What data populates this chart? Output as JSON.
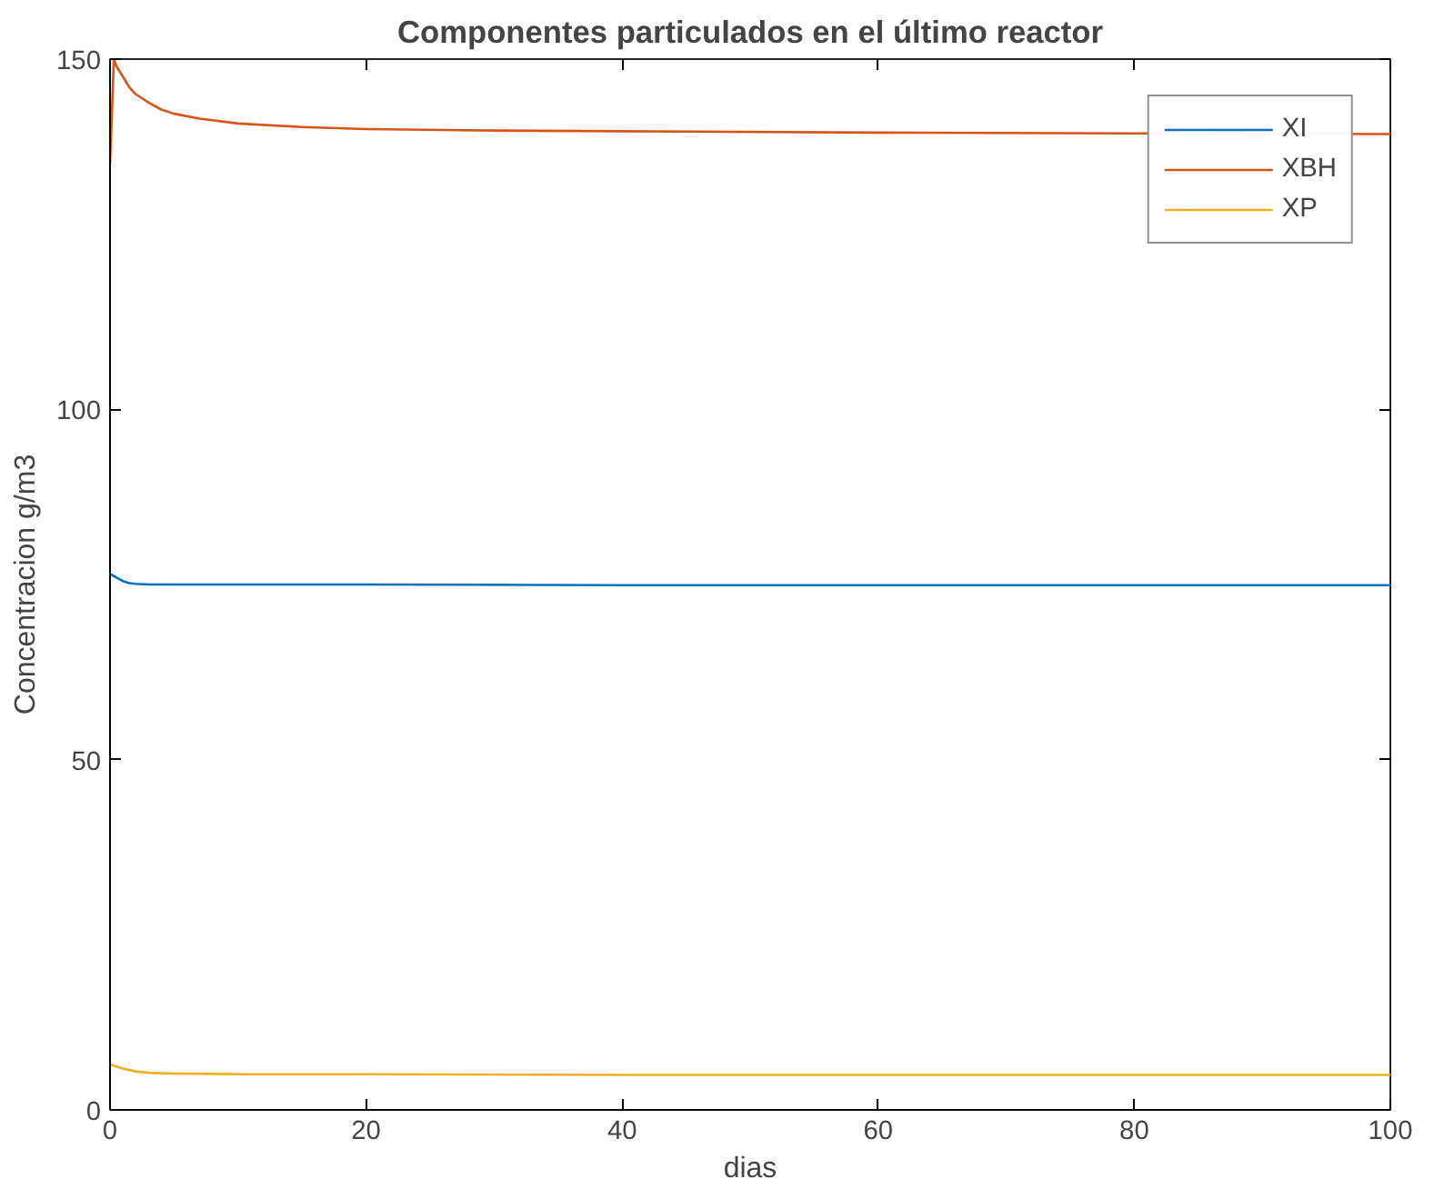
{
  "chart_data": {
    "type": "line",
    "title": "Componentes particulados en el último reactor",
    "xlabel": "dias",
    "ylabel": "Concentracion g/m3",
    "xlim": [
      0,
      100
    ],
    "ylim": [
      0,
      150
    ],
    "xticks": [
      0,
      20,
      40,
      60,
      80,
      100
    ],
    "yticks": [
      0,
      50,
      100,
      150
    ],
    "grid": false,
    "legend": "top right",
    "marker": "none",
    "line_style": "solid",
    "series": [
      {
        "name": "XI",
        "color": "#0072bd",
        "x": [
          0,
          0.3,
          0.7,
          1,
          1.5,
          2,
          3,
          5,
          10,
          20,
          40,
          60,
          80,
          100
        ],
        "values": [
          76.5,
          76.2,
          75.8,
          75.5,
          75.2,
          75.1,
          75.0,
          75.0,
          75.0,
          75.0,
          74.9,
          74.9,
          74.9,
          74.9
        ]
      },
      {
        "name": "XBH",
        "color": "#d95319",
        "x": [
          0,
          0.3,
          0.5,
          1,
          1.5,
          2,
          3,
          4,
          5,
          7,
          10,
          15,
          20,
          30,
          40,
          60,
          80,
          100
        ],
        "values": [
          135,
          150,
          149,
          147.5,
          146,
          145,
          143.8,
          142.8,
          142.2,
          141.5,
          140.8,
          140.3,
          140,
          139.8,
          139.7,
          139.5,
          139.4,
          139.3
        ]
      },
      {
        "name": "XP",
        "color": "#edb120",
        "x": [
          0,
          0.5,
          1,
          2,
          3,
          5,
          10,
          20,
          40,
          60,
          80,
          100
        ],
        "values": [
          6.5,
          6.2,
          5.9,
          5.5,
          5.3,
          5.2,
          5.1,
          5.1,
          5.0,
          5.0,
          5.0,
          5.0
        ]
      }
    ]
  }
}
